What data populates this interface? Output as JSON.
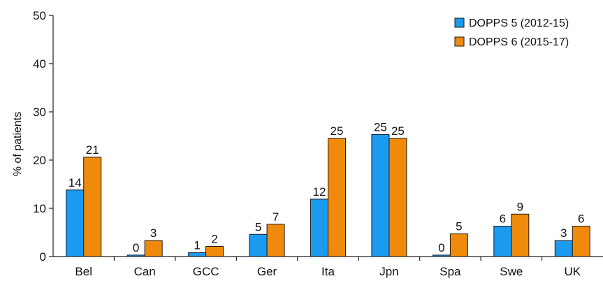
{
  "chart_data": {
    "type": "bar",
    "categories": [
      "Bel",
      "Can",
      "GCC",
      "Ger",
      "Ita",
      "Jpn",
      "Spa",
      "Swe",
      "UK"
    ],
    "series": [
      {
        "name": "DOPPS 5 (2012-15)",
        "color": "#1a9bf0",
        "values": [
          13.8,
          0.3,
          0.8,
          4.6,
          11.9,
          25.3,
          0.3,
          6.3,
          3.3
        ],
        "labels": [
          "14",
          "0",
          "1",
          "5",
          "12",
          "25",
          "0",
          "6",
          "3"
        ]
      },
      {
        "name": "DOPPS 6 (2015-17)",
        "color": "#f08a0c",
        "values": [
          20.6,
          3.3,
          2.1,
          6.7,
          24.5,
          24.5,
          4.7,
          8.8,
          6.3
        ],
        "labels": [
          "21",
          "3",
          "2",
          "7",
          "25",
          "25",
          "5",
          "9",
          "6"
        ]
      }
    ],
    "ylabel": "% of patients",
    "ylim": [
      0,
      50
    ],
    "yticks": [
      "0",
      "10",
      "20",
      "30",
      "40",
      "50"
    ],
    "grid": false,
    "legend": "top-right"
  }
}
